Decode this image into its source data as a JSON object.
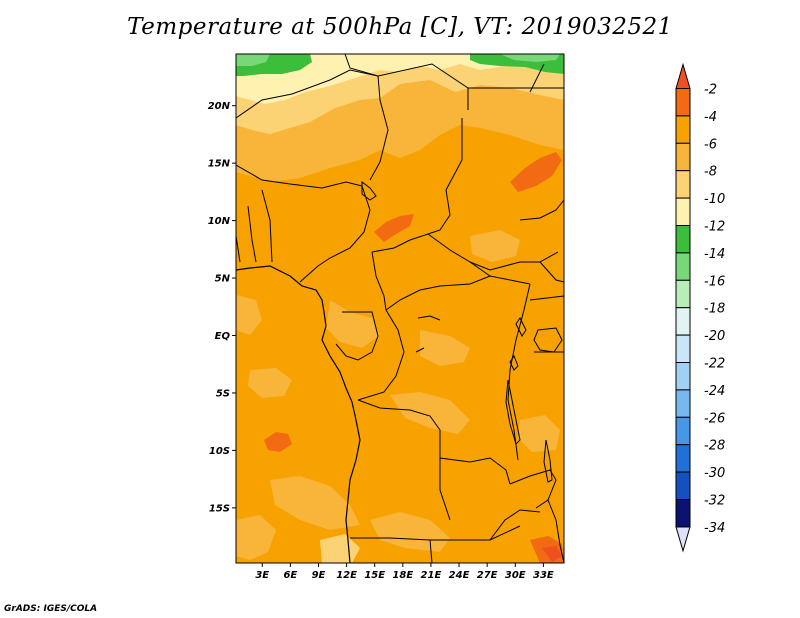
{
  "title": "Temperature at 500hPa [C], VT: 2019032521",
  "footer": "GrADS: IGES/COLA",
  "colors": {
    "band_minus2_above": "#f05020",
    "band_minus4_minus2": "#f26a12",
    "band_minus6_minus4": "#f7a200",
    "band_minus8_minus6": "#f8b53a",
    "band_minus10_minus8": "#fcd374",
    "band_minus12_minus10": "#fff2b0",
    "band_minus14_minus12": "#3cbe3c",
    "band_minus16_minus14": "#78d878",
    "band_minus18_minus16": "#b8ecb8",
    "band_minus20_minus18": "#e0f4f4",
    "band_minus22_minus20": "#c8e6f8",
    "band_minus24_minus22": "#a0d0f4",
    "band_minus26_minus24": "#78b8ee",
    "band_minus28_minus26": "#4896e6",
    "band_minus30_minus28": "#2070d8",
    "band_minus32_minus30": "#1450c0",
    "band_minus34_minus32": "#0c2e9c",
    "band_below_minus34": "#0a1470",
    "band_bottom_arrow": "#e0e0f8"
  },
  "map": {
    "lat_ticks": [
      {
        "label": "20N",
        "value": 20
      },
      {
        "label": "15N",
        "value": 15
      },
      {
        "label": "10N",
        "value": 10
      },
      {
        "label": "5N",
        "value": 5
      },
      {
        "label": "EQ",
        "value": 0
      },
      {
        "label": "5S",
        "value": -5
      },
      {
        "label": "10S",
        "value": -10
      },
      {
        "label": "15S",
        "value": -15
      }
    ],
    "lon_ticks": [
      {
        "label": "3E",
        "value": 3
      },
      {
        "label": "6E",
        "value": 6
      },
      {
        "label": "9E",
        "value": 9
      },
      {
        "label": "12E",
        "value": 12
      },
      {
        "label": "15E",
        "value": 15
      },
      {
        "label": "18E",
        "value": 18
      },
      {
        "label": "21E",
        "value": 21
      },
      {
        "label": "24E",
        "value": 24
      },
      {
        "label": "27E",
        "value": 27
      },
      {
        "label": "30E",
        "value": 30
      },
      {
        "label": "33E",
        "value": 33
      }
    ],
    "lat_range": [
      -19.8,
      24.5
    ],
    "lon_range": [
      0.2,
      35.2
    ]
  },
  "colorbar": {
    "labels": [
      "-2",
      "-4",
      "-6",
      "-8",
      "-10",
      "-12",
      "-14",
      "-16",
      "-18",
      "-20",
      "-22",
      "-24",
      "-26",
      "-28",
      "-30",
      "-32",
      "-34"
    ]
  }
}
